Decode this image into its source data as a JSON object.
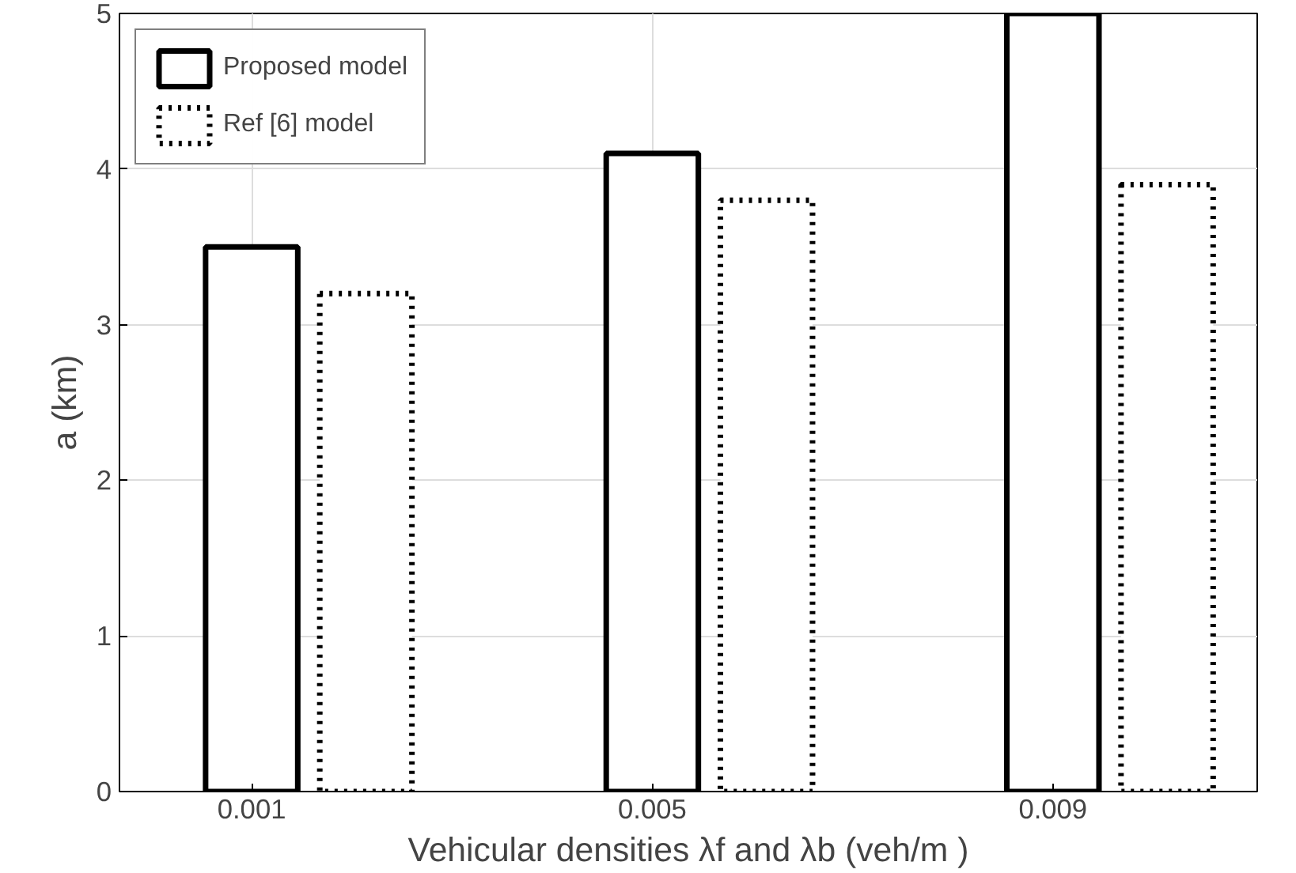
{
  "chart_data": {
    "type": "bar",
    "categories": [
      "0.001",
      "0.005",
      "0.009"
    ],
    "series": [
      {
        "name": "Proposed model",
        "color": "#000000",
        "line_style": "solid",
        "values": [
          3.5,
          4.1,
          5.0
        ]
      },
      {
        "name": "Ref [6] model",
        "color": "#000000",
        "line_style": "dotted",
        "values": [
          3.2,
          3.8,
          3.9
        ]
      }
    ],
    "xlabel": "Vehicular densities λf and λb (veh/m )",
    "ylabel": "a (km)",
    "ylim": [
      0,
      5
    ],
    "yticks": [
      0,
      1,
      2,
      3,
      4,
      5
    ],
    "grid": true,
    "legend": "top left"
  }
}
